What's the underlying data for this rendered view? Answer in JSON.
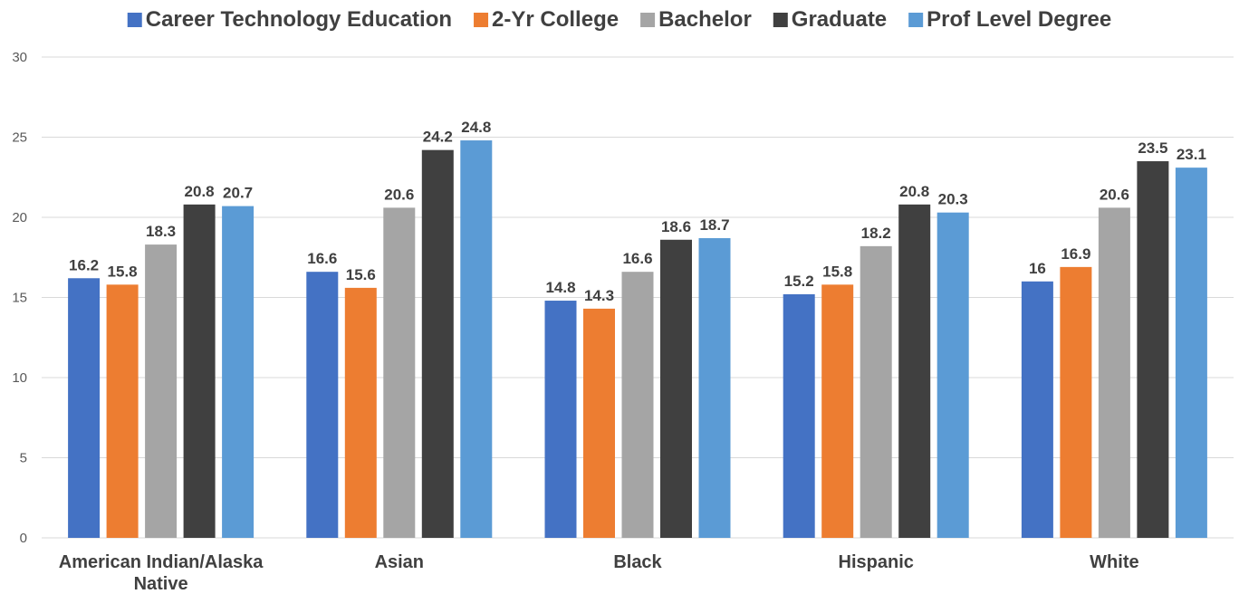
{
  "chart_data": {
    "type": "bar",
    "title": "",
    "xlabel": "",
    "ylabel": "",
    "ylim": [
      0,
      30
    ],
    "yticks": [
      0,
      5,
      10,
      15,
      20,
      25,
      30
    ],
    "grid": true,
    "legend_position": "top",
    "categories": [
      [
        "American Indian/Alaska",
        "Native"
      ],
      [
        "Asian"
      ],
      [
        "Black"
      ],
      [
        "Hispanic"
      ],
      [
        "White"
      ]
    ],
    "series": [
      {
        "name": "Career Technology Education",
        "color": "#4472c4",
        "values": [
          16.2,
          16.6,
          14.8,
          15.2,
          16
        ]
      },
      {
        "name": "2-Yr College",
        "color": "#ed7d31",
        "values": [
          15.8,
          15.6,
          14.3,
          15.8,
          16.9
        ]
      },
      {
        "name": "Bachelor",
        "color": "#a5a5a5",
        "values": [
          18.3,
          20.6,
          16.6,
          18.2,
          20.6
        ]
      },
      {
        "name": "Graduate",
        "color": "#404040",
        "values": [
          20.8,
          24.2,
          18.6,
          20.8,
          23.5
        ]
      },
      {
        "name": "Prof Level Degree",
        "color": "#5b9bd5",
        "values": [
          20.7,
          24.8,
          18.7,
          20.3,
          23.1
        ]
      }
    ]
  }
}
